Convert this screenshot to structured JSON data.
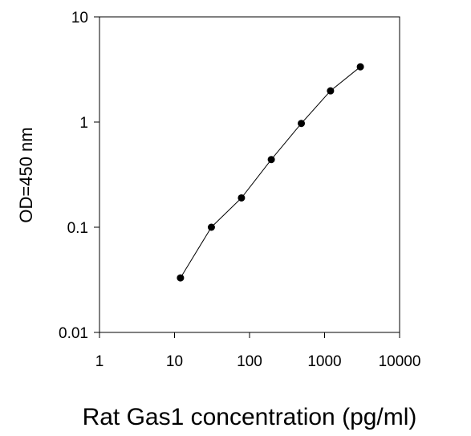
{
  "chart_data": {
    "type": "line",
    "title": "",
    "xlabel": "Rat Gas1 concentration (pg/ml)",
    "ylabel": "OD=450 nm",
    "x_scale": "log",
    "y_scale": "log",
    "xlim": [
      1,
      10000
    ],
    "ylim": [
      0.01,
      10
    ],
    "x_ticks": [
      1,
      10,
      100,
      1000,
      10000
    ],
    "x_tick_labels": [
      "1",
      "10",
      "100",
      "1000",
      "10000"
    ],
    "y_ticks": [
      0.01,
      0.1,
      1,
      10
    ],
    "y_tick_labels": [
      "0.01",
      "0.1",
      "1",
      "10"
    ],
    "grid": false,
    "legend": "none",
    "series": [
      {
        "x": [
          12,
          31,
          78,
          195,
          490,
          1200,
          3000
        ],
        "y": [
          0.033,
          0.1,
          0.19,
          0.44,
          0.97,
          1.98,
          3.35
        ],
        "color": "#000000",
        "marker": "circle"
      }
    ]
  }
}
